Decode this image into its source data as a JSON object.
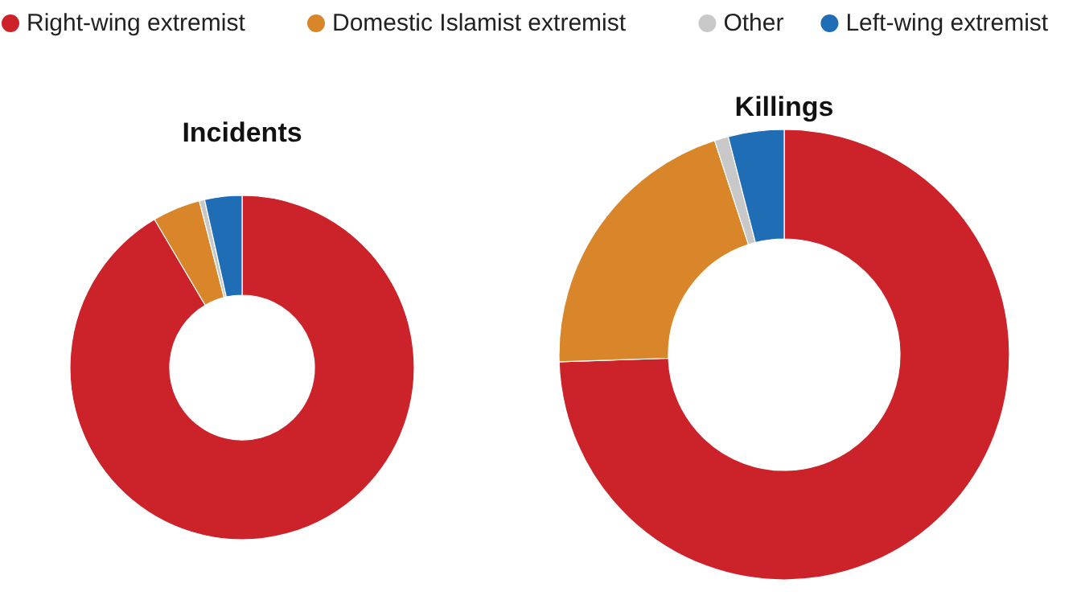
{
  "chart_data": [
    {
      "type": "donut",
      "title": "Incidents",
      "categories": [
        "Right-wing extremist",
        "Domestic Islamist extremist",
        "Other",
        "Left-wing extremist"
      ],
      "values": [
        91.5,
        4.5,
        0.5,
        3.5
      ],
      "colors": [
        "#cc2229",
        "#d9862a",
        "#c8c8c8",
        "#1f6db5"
      ],
      "legend": "top"
    },
    {
      "type": "donut",
      "title": "Killings",
      "categories": [
        null,
        null,
        null,
        null
      ],
      "values": [
        74.5,
        20.5,
        1.0,
        4.0
      ],
      "colors": [
        "#cc2229",
        "#d9862a",
        "#c8c8c8",
        "#1f6db5"
      ]
    }
  ]
}
